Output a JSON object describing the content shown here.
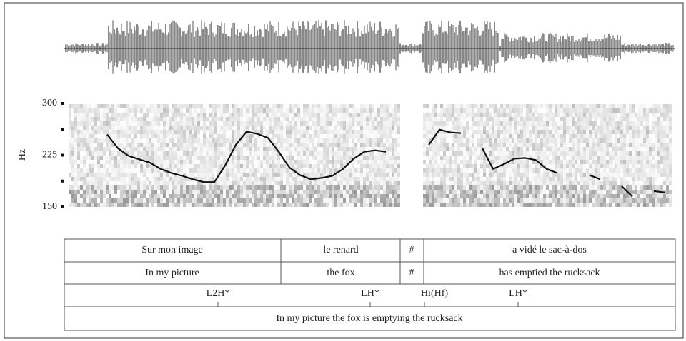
{
  "chart_data": {
    "type": "line",
    "y_label": "Hz",
    "categories": [
      null,
      null,
      null,
      null,
      null,
      null,
      null,
      null,
      null,
      null,
      null,
      null,
      null,
      null,
      null,
      null,
      null,
      null,
      null,
      null,
      null,
      null,
      null,
      null,
      null,
      null,
      null,
      null,
      null,
      null,
      null,
      null,
      null,
      null,
      null,
      null,
      null,
      null,
      null,
      null,
      null,
      null,
      null,
      null,
      null,
      null,
      null,
      null,
      null,
      null,
      null,
      null,
      null
    ],
    "series": [
      {
        "color": "#111111",
        "values": [
          255,
          235,
          224,
          219,
          214,
          205,
          199,
          195,
          190,
          186,
          186,
          210,
          240,
          259,
          256,
          250,
          230,
          207,
          196,
          190,
          192,
          195,
          205,
          220,
          230,
          232,
          230,
          null,
          null,
          null,
          240,
          262,
          258,
          257,
          null,
          235,
          205,
          212,
          220,
          221,
          218,
          205,
          199,
          null,
          null,
          196,
          190,
          null,
          180,
          165,
          null,
          173,
          171
        ]
      }
    ],
    "ylim": [
      150,
      300
    ],
    "yticks": [
      150,
      225,
      300
    ],
    "minor_yticks": [
      187.5,
      262.5
    ],
    "grid": false
  },
  "annotation": {
    "words": [
      "Sur mon image",
      "le renard",
      "#",
      "a vidé le sac-à-dos"
    ],
    "gloss": [
      "In my picture",
      "the fox",
      "#",
      "has emptied the rucksack"
    ],
    "tones": [
      "L2H*",
      "LH*",
      "Hi(Hf)",
      "LH*"
    ],
    "translation": "In my picture the fox is emptying the rucksack"
  }
}
